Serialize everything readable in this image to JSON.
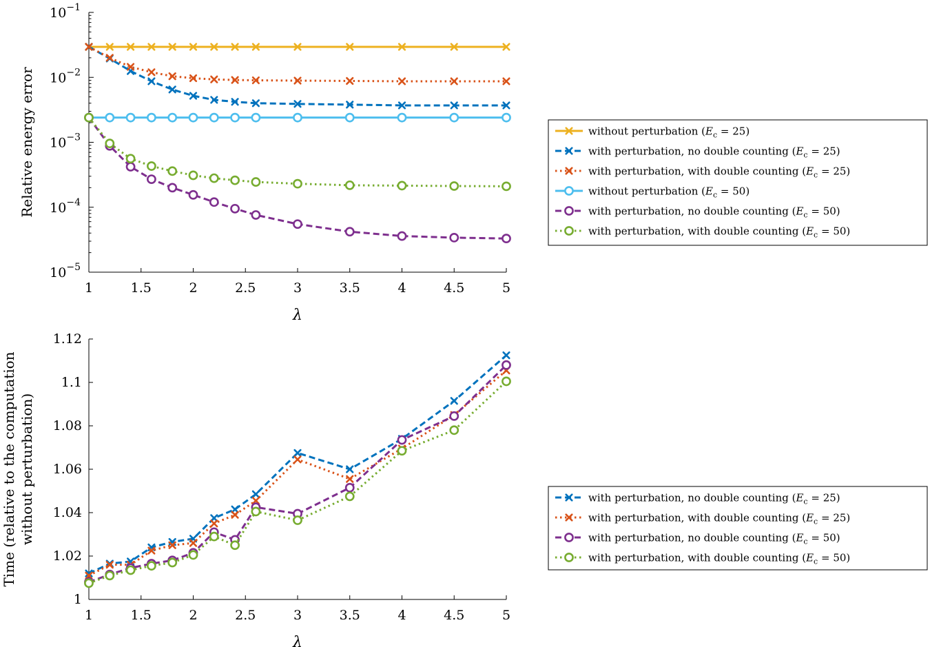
{
  "colors": {
    "yellow": "#EDB120",
    "blue": "#0072BD",
    "orange": "#D95319",
    "lightblue": "#4DBEEE",
    "purple": "#7E2F8E",
    "green": "#77AC30"
  },
  "chart_data": [
    {
      "type": "line",
      "title": "",
      "xlabel": "λ",
      "ylabel": "Relative energy error",
      "yscale": "log",
      "xlim": [
        1,
        5
      ],
      "ylim": [
        1e-05,
        0.1
      ],
      "xticks": [
        1,
        1.5,
        2,
        2.5,
        3,
        3.5,
        4,
        4.5,
        5
      ],
      "xtick_labels": [
        "1",
        "1.5",
        "2",
        "2.5",
        "3",
        "3.5",
        "4",
        "4.5",
        "5"
      ],
      "ytick_labels": [
        {
          "base": "10",
          "exp": "−5",
          "value": 1e-05
        },
        {
          "base": "10",
          "exp": "−4",
          "value": 0.0001
        },
        {
          "base": "10",
          "exp": "−3",
          "value": 0.001
        },
        {
          "base": "10",
          "exp": "−2",
          "value": 0.01
        },
        {
          "base": "10",
          "exp": "−1",
          "value": 0.1
        }
      ],
      "grid": false,
      "legend_position": "right",
      "x": [
        1,
        1.2,
        1.4,
        1.6,
        1.8,
        2,
        2.2,
        2.4,
        2.6,
        3,
        3.5,
        4,
        4.5,
        5
      ],
      "series": [
        {
          "name": "without perturbation (E_c = 25)",
          "label_pre": "without perturbation (",
          "label_ec": "25",
          "color": "yellow",
          "dash": "solid",
          "marker": "x",
          "values": [
            0.0295,
            0.0295,
            0.0295,
            0.0295,
            0.0295,
            0.0295,
            0.0295,
            0.0295,
            0.0295,
            0.0295,
            0.0295,
            0.0295,
            0.0295,
            0.0295
          ]
        },
        {
          "name": "with perturbation, no double counting (E_c = 25)",
          "label_pre": "with perturbation, no double counting (",
          "label_ec": "25",
          "color": "blue",
          "dash": "dashed",
          "marker": "x",
          "values": [
            0.0295,
            0.0195,
            0.0125,
            0.0087,
            0.0065,
            0.0052,
            0.0045,
            0.0042,
            0.004,
            0.0039,
            0.0038,
            0.0037,
            0.0037,
            0.0037
          ]
        },
        {
          "name": "with perturbation, with double counting (E_c = 25)",
          "label_pre": "with perturbation, with double counting (",
          "label_ec": "25",
          "color": "orange",
          "dash": "dotted",
          "marker": "x",
          "values": [
            0.0295,
            0.02,
            0.0145,
            0.012,
            0.0104,
            0.0097,
            0.0093,
            0.0091,
            0.009,
            0.0089,
            0.0088,
            0.0087,
            0.0087,
            0.0087
          ]
        },
        {
          "name": "without perturbation (E_c = 50)",
          "label_pre": "without perturbation (",
          "label_ec": "50",
          "color": "lightblue",
          "dash": "solid",
          "marker": "o",
          "values": [
            0.0024,
            0.0024,
            0.0024,
            0.0024,
            0.0024,
            0.0024,
            0.0024,
            0.0024,
            0.0024,
            0.0024,
            0.0024,
            0.0024,
            0.0024,
            0.0024
          ]
        },
        {
          "name": "with perturbation, no double counting (E_c = 50)",
          "label_pre": "with perturbation, no double counting (",
          "label_ec": "50",
          "color": "purple",
          "dash": "dashed",
          "marker": "o",
          "values": [
            0.0024,
            0.00088,
            0.00042,
            0.00027,
            0.0002,
            0.000155,
            0.00012,
            9.5e-05,
            7.6e-05,
            5.5e-05,
            4.2e-05,
            3.6e-05,
            3.4e-05,
            3.3e-05
          ]
        },
        {
          "name": "with perturbation, with double counting (E_c = 50)",
          "label_pre": "with perturbation, with double counting (",
          "label_ec": "50",
          "color": "green",
          "dash": "dotted",
          "marker": "o",
          "values": [
            0.0024,
            0.00096,
            0.00056,
            0.00043,
            0.00036,
            0.00031,
            0.00028,
            0.00026,
            0.000245,
            0.00023,
            0.000218,
            0.000215,
            0.000212,
            0.00021
          ]
        }
      ]
    },
    {
      "type": "line",
      "title": "",
      "xlabel": "λ",
      "ylabel": "Time (relative to the computation without perturbation)",
      "ylabel_lines": [
        "Time (relative to the computation",
        "without perturbation)"
      ],
      "yscale": "linear",
      "xlim": [
        1,
        5
      ],
      "ylim": [
        1,
        1.12
      ],
      "xticks": [
        1,
        1.5,
        2,
        2.5,
        3,
        3.5,
        4,
        4.5,
        5
      ],
      "xtick_labels": [
        "1",
        "1.5",
        "2",
        "2.5",
        "3",
        "3.5",
        "4",
        "4.5",
        "5"
      ],
      "yticks": [
        1,
        1.02,
        1.04,
        1.06,
        1.08,
        1.1,
        1.12
      ],
      "ytick_labels": [
        "1",
        "1.02",
        "1.04",
        "1.06",
        "1.08",
        "1.1",
        "1.12"
      ],
      "grid": false,
      "legend_position": "right",
      "x": [
        1,
        1.2,
        1.4,
        1.6,
        1.8,
        2,
        2.2,
        2.4,
        2.6,
        3,
        3.5,
        4,
        4.5,
        5
      ],
      "series": [
        {
          "name": "with perturbation, no double counting (E_c = 25)",
          "label_pre": "with perturbation, no double counting (",
          "label_ec": "25",
          "color": "blue",
          "dash": "dashed",
          "marker": "x",
          "values": [
            1.012,
            1.0165,
            1.0175,
            1.024,
            1.0265,
            1.028,
            1.0375,
            1.0415,
            1.0485,
            1.0675,
            1.06,
            1.074,
            1.0915,
            1.1125
          ]
        },
        {
          "name": "with perturbation, with double counting (E_c = 25)",
          "label_pre": "with perturbation, with double counting (",
          "label_ec": "25",
          "color": "orange",
          "dash": "dotted",
          "marker": "x",
          "values": [
            1.011,
            1.016,
            1.016,
            1.0225,
            1.025,
            1.026,
            1.035,
            1.039,
            1.0455,
            1.0645,
            1.0555,
            1.0695,
            1.085,
            1.1055
          ]
        },
        {
          "name": "with perturbation, no double counting (E_c = 50)",
          "label_pre": "with perturbation, no double counting (",
          "label_ec": "50",
          "color": "purple",
          "dash": "dashed",
          "marker": "o",
          "values": [
            1.008,
            1.0115,
            1.0145,
            1.0165,
            1.018,
            1.0215,
            1.031,
            1.0275,
            1.0425,
            1.0395,
            1.0515,
            1.0735,
            1.0845,
            1.108
          ]
        },
        {
          "name": "with perturbation, with double counting (E_c = 50)",
          "label_pre": "with perturbation, with double counting (",
          "label_ec": "50",
          "color": "green",
          "dash": "dotted",
          "marker": "o",
          "values": [
            1.0075,
            1.011,
            1.0135,
            1.0155,
            1.017,
            1.0205,
            1.029,
            1.025,
            1.0405,
            1.0365,
            1.0475,
            1.0685,
            1.078,
            1.1005
          ]
        }
      ]
    }
  ]
}
